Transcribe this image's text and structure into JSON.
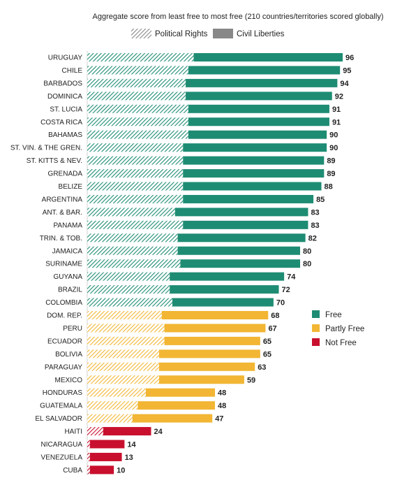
{
  "chart_data": {
    "type": "bar",
    "orientation": "horizontal",
    "stacked": true,
    "subtitle": "Aggregate score from least free to most free (210 countries/territories scored globally)",
    "series_legend": [
      {
        "name": "Political Rights",
        "pattern": "hatched"
      },
      {
        "name": "Civil Liberties",
        "pattern": "solid"
      }
    ],
    "status_legend": [
      {
        "key": "free",
        "label": "Free",
        "color": "#1e8c73"
      },
      {
        "key": "partly",
        "label": "Partly Free",
        "color": "#f2b634"
      },
      {
        "key": "not",
        "label": "Not Free",
        "color": "#c8102e"
      }
    ],
    "legend_position": "right",
    "xlim": [
      0,
      100
    ],
    "categories": [
      "URUGUAY",
      "CHILE",
      "BARBADOS",
      "DOMINICA",
      "ST. LUCIA",
      "COSTA RICA",
      "BAHAMAS",
      "ST. VIN. & THE GREN.",
      "ST. KITTS & NEV.",
      "GRENADA",
      "BELIZE",
      "ARGENTINA",
      "ANT. & BAR.",
      "PANAMA",
      "TRIN. & TOB.",
      "JAMAICA",
      "SURINAME",
      "GUYANA",
      "BRAZIL",
      "COLOMBIA",
      "DOM. REP.",
      "PERU",
      "ECUADOR",
      "BOLIVIA",
      "PARAGUAY",
      "MEXICO",
      "HONDURAS",
      "GUATEMALA",
      "EL SALVADOR",
      "HAITI",
      "NICARAGUA",
      "VENEZUELA",
      "CUBA"
    ],
    "series": [
      {
        "name": "Political Rights",
        "values": [
          40,
          38,
          37,
          37,
          38,
          38,
          38,
          36,
          36,
          36,
          36,
          36,
          33,
          36,
          34,
          34,
          35,
          31,
          31,
          32,
          28,
          29,
          29,
          27,
          27,
          27,
          22,
          19,
          17,
          6,
          1,
          1,
          1
        ]
      },
      {
        "name": "Civil Liberties",
        "values": [
          56,
          57,
          57,
          55,
          53,
          53,
          52,
          54,
          53,
          53,
          52,
          49,
          50,
          47,
          48,
          46,
          45,
          43,
          41,
          38,
          40,
          38,
          36,
          38,
          36,
          32,
          26,
          29,
          30,
          18,
          13,
          12,
          9
        ]
      }
    ],
    "totals": [
      96,
      95,
      94,
      92,
      91,
      91,
      90,
      90,
      89,
      89,
      88,
      85,
      83,
      83,
      82,
      80,
      80,
      74,
      72,
      70,
      68,
      67,
      65,
      65,
      63,
      59,
      48,
      48,
      47,
      24,
      14,
      13,
      10
    ],
    "status": [
      "free",
      "free",
      "free",
      "free",
      "free",
      "free",
      "free",
      "free",
      "free",
      "free",
      "free",
      "free",
      "free",
      "free",
      "free",
      "free",
      "free",
      "free",
      "free",
      "free",
      "partly",
      "partly",
      "partly",
      "partly",
      "partly",
      "partly",
      "partly",
      "partly",
      "partly",
      "not",
      "not",
      "not",
      "not"
    ]
  }
}
